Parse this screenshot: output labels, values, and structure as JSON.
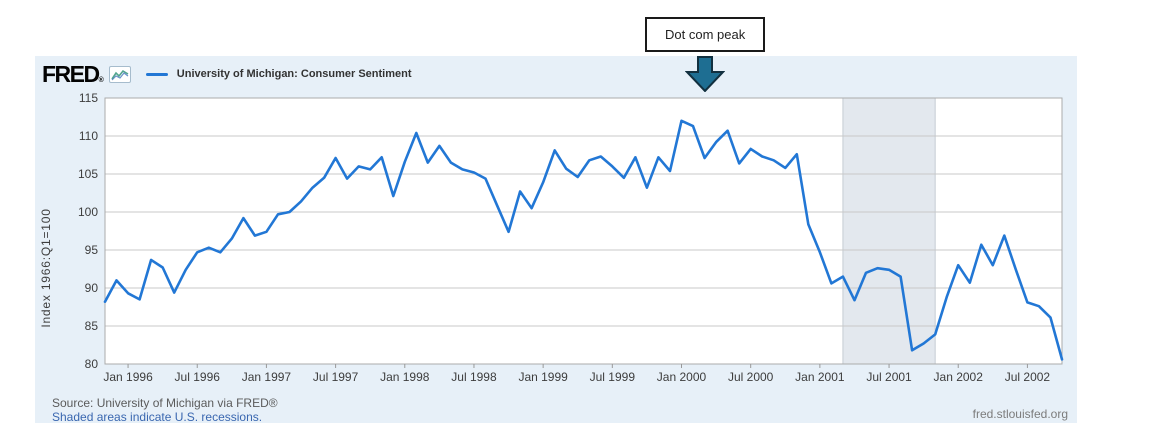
{
  "annotation": {
    "label": "Dot com peak",
    "target_month": "2000-03"
  },
  "header": {
    "logo_text": "FRED",
    "logo_reg": "®",
    "legend_label": "University of Michigan: Consumer Sentiment"
  },
  "footer": {
    "source": "Source: University of Michigan via FRED®",
    "recession_note": "Shaded areas indicate U.S. recessions.",
    "site": "fred.stlouisfed.org"
  },
  "colors": {
    "line": "#2277d5",
    "panel_bg": "#e7f0f8",
    "plot_bg": "#ffffff",
    "grid": "#c8c8c8",
    "plot_border": "#ababab",
    "tick": "#999999",
    "axis_text": "#3d3d3d",
    "recession_fill": "#e3e8ee",
    "recession_edge": "#c5ccd3",
    "arrow_fill": "#1e6e92",
    "arrow_edge": "#12303f",
    "link_text": "#3a67b0",
    "icon_teal": "#53a58f",
    "icon_blue": "#4f7fbf"
  },
  "chart_data": {
    "type": "line",
    "title": "University of Michigan: Consumer Sentiment",
    "ylabel": "Index 1966:Q1=100",
    "xlabel": "",
    "ylim": [
      80,
      115
    ],
    "yticks": [
      80,
      85,
      90,
      95,
      100,
      105,
      110,
      115
    ],
    "grid": true,
    "legend_position": "top-left",
    "frequency": "monthly",
    "start_month": "1995-11",
    "end_month": "2002-10",
    "values": [
      88.2,
      91.0,
      89.3,
      88.5,
      93.7,
      92.7,
      89.4,
      92.4,
      94.7,
      95.3,
      94.7,
      96.5,
      99.2,
      96.9,
      97.4,
      99.7,
      100.0,
      101.4,
      103.2,
      104.5,
      107.1,
      104.4,
      106.0,
      105.6,
      107.2,
      102.1,
      106.6,
      110.4,
      106.5,
      108.7,
      106.5,
      105.6,
      105.2,
      104.4,
      100.9,
      97.4,
      102.7,
      100.5,
      103.9,
      108.1,
      105.7,
      104.6,
      106.8,
      107.3,
      106.0,
      104.5,
      107.2,
      103.2,
      107.2,
      105.4,
      112.0,
      111.3,
      107.1,
      109.2,
      110.7,
      106.4,
      108.3,
      107.3,
      106.8,
      105.8,
      107.6,
      98.4,
      94.7,
      90.6,
      91.5,
      88.4,
      92.0,
      92.6,
      92.4,
      91.5,
      81.8,
      82.7,
      83.9,
      88.8,
      93.0,
      90.7,
      95.7,
      93.0,
      96.9,
      92.4,
      88.1,
      87.6,
      86.1,
      80.6
    ],
    "xticks": [
      {
        "label": "Jan 1996",
        "month": "1996-01"
      },
      {
        "label": "Jul 1996",
        "month": "1996-07"
      },
      {
        "label": "Jan 1997",
        "month": "1997-01"
      },
      {
        "label": "Jul 1997",
        "month": "1997-07"
      },
      {
        "label": "Jan 1998",
        "month": "1998-01"
      },
      {
        "label": "Jul 1998",
        "month": "1998-07"
      },
      {
        "label": "Jan 1999",
        "month": "1999-01"
      },
      {
        "label": "Jul 1999",
        "month": "1999-07"
      },
      {
        "label": "Jan 2000",
        "month": "2000-01"
      },
      {
        "label": "Jul 2000",
        "month": "2000-07"
      },
      {
        "label": "Jan 2001",
        "month": "2001-01"
      },
      {
        "label": "Jul 2001",
        "month": "2001-07"
      },
      {
        "label": "Jan 2002",
        "month": "2002-01"
      },
      {
        "label": "Jul 2002",
        "month": "2002-07"
      }
    ],
    "recession_bands": [
      {
        "start": "2001-03",
        "end": "2001-11"
      }
    ]
  }
}
